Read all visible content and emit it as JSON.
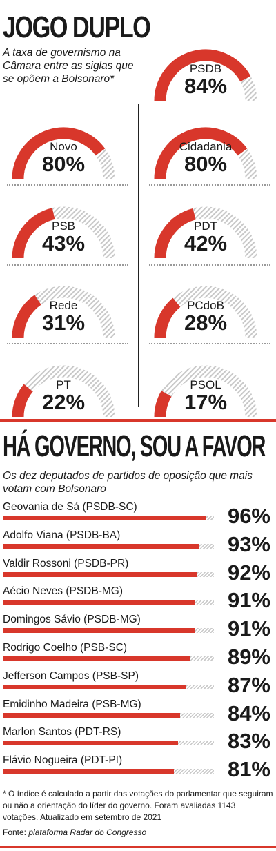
{
  "title": "JOGO DUPLO",
  "subtitle": "A taxa de governismo na Câmara entre as siglas que se opõem a Bolsonaro*",
  "colors": {
    "accent": "#d8372b",
    "track": "#c8c8c8"
  },
  "chart_data": [
    {
      "type": "gauge",
      "title": "JOGO DUPLO",
      "subtitle": "A taxa de governismo na Câmara entre as siglas que se opõem a Bolsonaro*",
      "unit": "%",
      "categories": [
        "PSDB",
        "Novo",
        "Cidadania",
        "PSB",
        "PDT",
        "Rede",
        "PCdoB",
        "PT",
        "PSOL"
      ],
      "values": [
        84,
        80,
        80,
        43,
        42,
        31,
        28,
        22,
        17
      ],
      "labels": [
        "84%",
        "80%",
        "80%",
        "43%",
        "42%",
        "31%",
        "28%",
        "22%",
        "17%"
      ],
      "ylim": [
        0,
        100
      ]
    },
    {
      "type": "bar",
      "orientation": "horizontal",
      "title": "HÁ GOVERNO, SOU A FAVOR",
      "subtitle": "Os dez deputados de partidos de oposição que mais votam com Bolsonaro",
      "unit": "%",
      "categories": [
        "Geovania de Sá (PSDB-SC)",
        "Adolfo Viana (PSDB-BA)",
        "Valdir Rossoni (PSDB-PR)",
        "Aécio Neves (PSDB-MG)",
        "Domingos Sávio (PSDB-MG)",
        "Rodrigo Coelho (PSB-SC)",
        "Jefferson Campos (PSB-SP)",
        "Emidinho Madeira (PSB-MG)",
        "Marlon Santos (PDT-RS)",
        "Flávio Nogueira (PDT-PI)"
      ],
      "values": [
        96,
        93,
        92,
        91,
        91,
        89,
        87,
        84,
        83,
        81
      ],
      "labels": [
        "96%",
        "93%",
        "92%",
        "91%",
        "91%",
        "89%",
        "87%",
        "84%",
        "83%",
        "81%"
      ],
      "xlim": [
        0,
        100
      ]
    }
  ],
  "section2": {
    "title": "HÁ GOVERNO, SOU A FAVOR",
    "subtitle": "Os dez deputados de partidos de oposição que mais votam com Bolsonaro"
  },
  "footnote": "* O índice é calculado a partir das votações do parlamentar que seguiram ou não a orientação do líder do governo. Foram avaliadas 1143 votações. Atualizado em setembro de 2021",
  "source_label": "Fonte:",
  "source_text": "plataforma Radar do Congresso"
}
